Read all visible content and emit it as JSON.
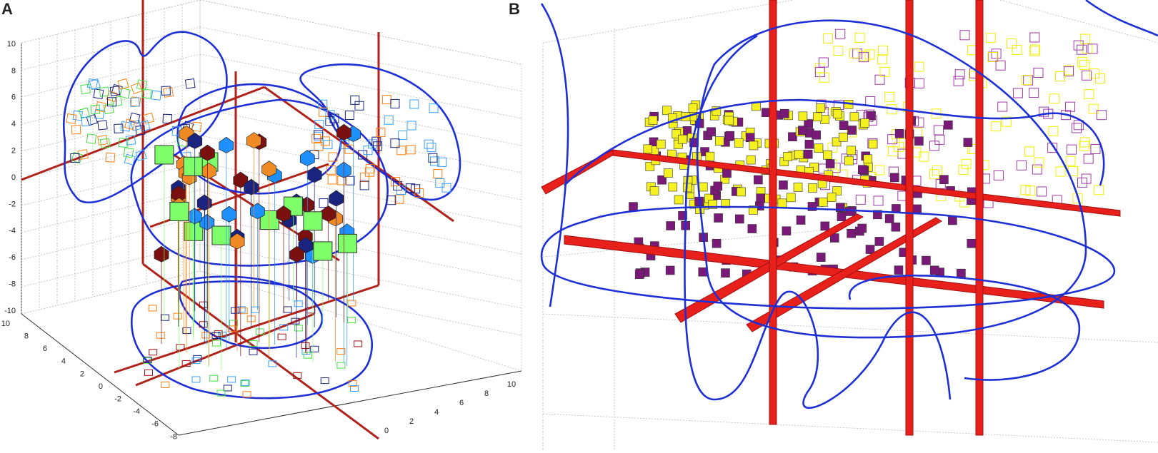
{
  "panels": [
    {
      "label": "A",
      "z_ticks": [
        10,
        8,
        6,
        4,
        2,
        0,
        -2,
        -4,
        -6,
        -8,
        -10
      ],
      "y_ticks": [
        10,
        8,
        6,
        4,
        2,
        0,
        -2,
        -4,
        -6,
        -8
      ],
      "x_ticks": [
        0,
        2,
        4,
        6,
        8,
        10
      ]
    },
    {
      "label": "B"
    }
  ]
}
